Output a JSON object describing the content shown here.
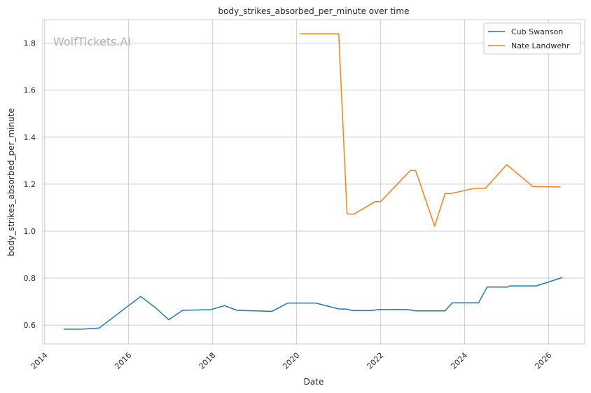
{
  "chart_data": {
    "type": "line",
    "title": "body_strikes_absorbed_per_minute over time",
    "xlabel": "Date",
    "ylabel": "body_strikes_absorbed_per_minute",
    "x_ticks": [
      "2014",
      "2016",
      "2018",
      "2020",
      "2022",
      "2024",
      "2026"
    ],
    "y_ticks": [
      "0.6",
      "0.8",
      "1.0",
      "1.2",
      "1.4",
      "1.6",
      "1.8"
    ],
    "xlim": [
      "2013-12-15",
      "2026-11-10"
    ],
    "ylim": [
      0.52,
      1.9
    ],
    "grid": true,
    "legend_position": "top-right",
    "watermark": "WolfTickets.AI",
    "series": [
      {
        "name": "Cub Swanson",
        "color": "#1f77b4",
        "points": [
          [
            "2014-06-15",
            0.583
          ],
          [
            "2014-11-20",
            0.583
          ],
          [
            "2015-04-20",
            0.588
          ],
          [
            "2016-04-15",
            0.722
          ],
          [
            "2016-08-20",
            0.675
          ],
          [
            "2016-12-15",
            0.623
          ],
          [
            "2017-04-15",
            0.663
          ],
          [
            "2017-12-15",
            0.666
          ],
          [
            "2018-04-15",
            0.683
          ],
          [
            "2018-08-01",
            0.663
          ],
          [
            "2019-06-01",
            0.659
          ],
          [
            "2019-10-15",
            0.694
          ],
          [
            "2020-06-15",
            0.694
          ],
          [
            "2021-01-01",
            0.669
          ],
          [
            "2021-03-15",
            0.668
          ],
          [
            "2021-05-01",
            0.662
          ],
          [
            "2021-10-15",
            0.662
          ],
          [
            "2021-12-15",
            0.667
          ],
          [
            "2022-08-15",
            0.667
          ],
          [
            "2022-11-01",
            0.661
          ],
          [
            "2023-07-15",
            0.661
          ],
          [
            "2023-09-15",
            0.695
          ],
          [
            "2024-05-01",
            0.695
          ],
          [
            "2024-07-15",
            0.762
          ],
          [
            "2025-01-10",
            0.762
          ],
          [
            "2025-01-25",
            0.767
          ],
          [
            "2025-09-15",
            0.767
          ],
          [
            "2026-05-01",
            0.803
          ]
        ]
      },
      {
        "name": "Nate Landwehr",
        "color": "#ff7f0e",
        "points": [
          [
            "2020-02-01",
            1.84
          ],
          [
            "2021-01-01",
            1.84
          ],
          [
            "2021-03-15",
            1.073
          ],
          [
            "2021-05-15",
            1.073
          ],
          [
            "2021-11-15",
            1.126
          ],
          [
            "2022-01-01",
            1.126
          ],
          [
            "2022-09-15",
            1.258
          ],
          [
            "2022-11-01",
            1.258
          ],
          [
            "2023-04-15",
            1.021
          ],
          [
            "2023-07-15",
            1.16
          ],
          [
            "2023-09-01",
            1.16
          ],
          [
            "2024-04-01",
            1.183
          ],
          [
            "2024-07-01",
            1.183
          ],
          [
            "2025-01-01",
            1.283
          ],
          [
            "2025-08-15",
            1.19
          ],
          [
            "2026-04-15",
            1.188
          ]
        ]
      }
    ]
  }
}
